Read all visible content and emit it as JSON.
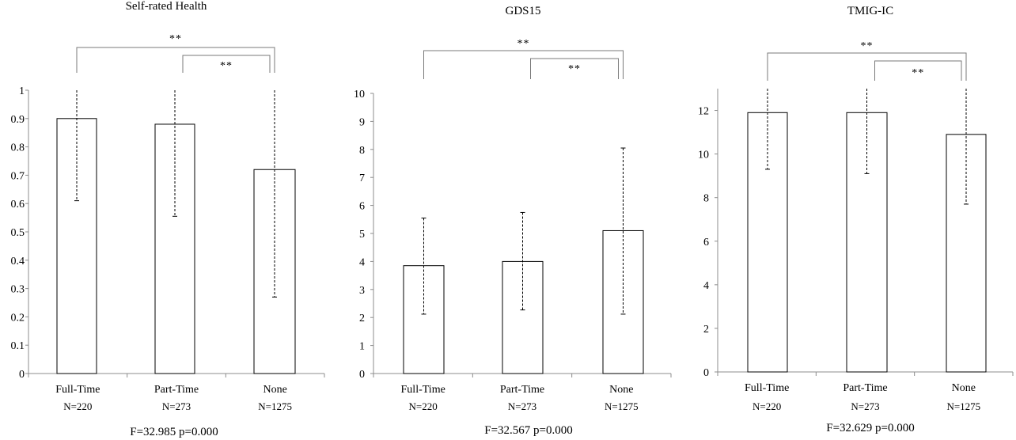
{
  "chart_data": [
    {
      "type": "bar",
      "title": "Self-rated  Health",
      "categories": [
        "Full-Time",
        "Part-Time",
        "None"
      ],
      "n_labels": [
        "N=220",
        "N=273",
        "N=1275"
      ],
      "values": [
        0.9,
        0.88,
        0.72
      ],
      "error_low": [
        0.61,
        0.555,
        0.27
      ],
      "error_high": [
        1.0,
        1.0,
        1.0
      ],
      "ylim": [
        0,
        1
      ],
      "yticks": [
        0,
        0.1,
        0.2,
        0.3,
        0.4,
        0.5,
        0.6,
        0.7,
        0.8,
        0.9,
        1
      ],
      "ytick_labels": [
        "0",
        "0.1",
        "0.2",
        "0.3",
        "0.4",
        "0.5",
        "0.6",
        "0.7",
        "0.8",
        "0.9",
        "1"
      ],
      "significance": [
        {
          "from": 0,
          "to": 2,
          "label": "**"
        },
        {
          "from": 1,
          "to": 2,
          "label": "**"
        }
      ],
      "stat_label": "F=32.985  p=0.000"
    },
    {
      "type": "bar",
      "title": "GDS15",
      "categories": [
        "Full-Time",
        "Part-Time",
        "None"
      ],
      "n_labels": [
        "N=220",
        "N=273",
        "N=1275"
      ],
      "values": [
        3.85,
        4.0,
        5.1
      ],
      "error_low": [
        2.12,
        2.27,
        2.12
      ],
      "error_high": [
        5.55,
        5.75,
        8.05
      ],
      "ylim": [
        0,
        10
      ],
      "yticks": [
        0,
        1,
        2,
        3,
        4,
        5,
        6,
        7,
        8,
        9,
        10
      ],
      "ytick_labels": [
        "0",
        "1",
        "2",
        "3",
        "4",
        "5",
        "6",
        "7",
        "8",
        "9",
        "10"
      ],
      "significance": [
        {
          "from": 0,
          "to": 2,
          "label": "**"
        },
        {
          "from": 1,
          "to": 2,
          "label": "**"
        }
      ],
      "stat_label": "F=32.567  p=0.000"
    },
    {
      "type": "bar",
      "title": "TMIG-IC",
      "categories": [
        "Full-Time",
        "Part-Time",
        "None"
      ],
      "n_labels": [
        "N=220",
        "N=273",
        "N=1275"
      ],
      "values": [
        11.9,
        11.9,
        10.9
      ],
      "error_low": [
        9.3,
        9.1,
        7.7
      ],
      "error_high": [
        13,
        13,
        13
      ],
      "ylim": [
        0,
        13
      ],
      "yticks": [
        0,
        2,
        4,
        6,
        8,
        10,
        12
      ],
      "ytick_labels": [
        "0",
        "2",
        "4",
        "6",
        "8",
        "10",
        "12"
      ],
      "significance": [
        {
          "from": 0,
          "to": 2,
          "label": "**"
        },
        {
          "from": 1,
          "to": 2,
          "label": "**"
        }
      ],
      "stat_label": "F=32.629  p=0.000"
    }
  ]
}
